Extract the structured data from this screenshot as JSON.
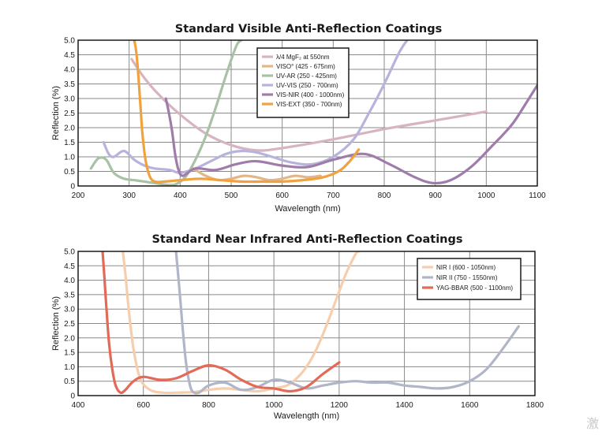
{
  "chart_data": [
    {
      "type": "line",
      "title": "Standard Visible Anti-Reflection Coatings",
      "xlabel": "Wavelength (nm)",
      "ylabel": "Reflection (%)",
      "xlim": [
        200,
        1100
      ],
      "ylim": [
        0,
        5.0
      ],
      "xticks": [
        "200",
        "300",
        "400",
        "500",
        "600",
        "700",
        "800",
        "900",
        "1000",
        "1100"
      ],
      "yticks": [
        "0",
        "0.5",
        "1.0",
        "1.5",
        "2.0",
        "2.5",
        "3.0",
        "3.5",
        "4.0",
        "4.5",
        "5.0"
      ],
      "grid": true,
      "legend_position": "top-center",
      "series": [
        {
          "name": "λ/4 MgF₂ at 550nm",
          "color": "#d7b4c0",
          "x": [
            305,
            330,
            360,
            400,
            450,
            500,
            550,
            600,
            700,
            800,
            900,
            1000
          ],
          "y": [
            4.35,
            3.7,
            3.1,
            2.45,
            1.8,
            1.4,
            1.22,
            1.3,
            1.6,
            1.95,
            2.25,
            2.55
          ]
        },
        {
          "name": "VISO° (425 - 675nm)",
          "color": "#e2b688",
          "x": [
            425,
            450,
            475,
            500,
            525,
            550,
            575,
            600,
            625,
            650,
            675
          ],
          "y": [
            0.6,
            0.35,
            0.2,
            0.25,
            0.35,
            0.3,
            0.2,
            0.25,
            0.35,
            0.3,
            0.35
          ]
        },
        {
          "name": "UV-AR (250 - 425nm)",
          "color": "#a7c2a5",
          "x": [
            225,
            240,
            255,
            270,
            290,
            310,
            330,
            350,
            370,
            390,
            410,
            430,
            450,
            470,
            490,
            510,
            520
          ],
          "y": [
            0.6,
            0.95,
            0.9,
            0.45,
            0.25,
            0.2,
            0.15,
            0.1,
            0.05,
            0.05,
            0.3,
            0.9,
            1.7,
            2.7,
            3.8,
            4.8,
            5.0
          ]
        },
        {
          "name": "UV-VIS (250 - 700nm)",
          "color": "#b6b4dc",
          "x": [
            250,
            260,
            270,
            290,
            310,
            330,
            350,
            380,
            400,
            430,
            460,
            490,
            520,
            550,
            580,
            620,
            660,
            700,
            740,
            770,
            800,
            830,
            845
          ],
          "y": [
            1.5,
            1.1,
            1.0,
            1.2,
            0.9,
            0.7,
            0.6,
            0.55,
            0.45,
            0.6,
            0.85,
            1.1,
            1.2,
            1.15,
            1.0,
            0.8,
            0.75,
            1.0,
            1.6,
            2.5,
            3.5,
            4.6,
            5.0
          ]
        },
        {
          "name": "VIS-NIR (400 - 1000nm)",
          "color": "#a07cab",
          "x": [
            372,
            378,
            384,
            390,
            396,
            405,
            430,
            470,
            510,
            550,
            600,
            650,
            700,
            760,
            810,
            860,
            895,
            930,
            970,
            1010,
            1050,
            1080,
            1100
          ],
          "y": [
            3.0,
            2.5,
            1.9,
            1.1,
            0.6,
            0.35,
            0.6,
            0.55,
            0.75,
            0.85,
            0.7,
            0.65,
            0.9,
            1.1,
            0.75,
            0.3,
            0.1,
            0.2,
            0.65,
            1.35,
            2.1,
            2.9,
            3.45
          ]
        },
        {
          "name": "VIS-EXT (350 - 700nm)",
          "color": "#f0a23e",
          "x": [
            310,
            314,
            318,
            322,
            326,
            332,
            340,
            350,
            370,
            400,
            440,
            480,
            520,
            560,
            600,
            640,
            680,
            710,
            730,
            750
          ],
          "y": [
            5.0,
            4.6,
            3.8,
            2.8,
            1.8,
            0.9,
            0.35,
            0.15,
            0.15,
            0.2,
            0.25,
            0.2,
            0.15,
            0.15,
            0.15,
            0.2,
            0.3,
            0.5,
            0.8,
            1.25
          ]
        }
      ]
    },
    {
      "type": "line",
      "title": "Standard Near Infrared Anti-Reflection Coatings",
      "xlabel": "Wavelength (nm)",
      "ylabel": "Reflection (%)",
      "xlim": [
        400,
        1800
      ],
      "ylim": [
        0,
        5.0
      ],
      "xticks": [
        "400",
        "600",
        "800",
        "1000",
        "1200",
        "1400",
        "1600",
        "1800"
      ],
      "yticks": [
        "0",
        "0.5",
        "1.0",
        "1.5",
        "2.0",
        "2.5",
        "3.0",
        "3.5",
        "4.0",
        "4.5",
        "5.0"
      ],
      "grid": true,
      "legend_position": "top-right",
      "series": [
        {
          "name": "NIR I (600 - 1050nm)",
          "color": "#f6ceac",
          "x": [
            537,
            545,
            555,
            570,
            590,
            620,
            660,
            700,
            750,
            800,
            850,
            900,
            950,
            1000,
            1040,
            1070,
            1100,
            1130,
            1160,
            1190,
            1220,
            1250,
            1260
          ],
          "y": [
            5.0,
            4.2,
            3.0,
            1.6,
            0.6,
            0.2,
            0.1,
            0.1,
            0.12,
            0.2,
            0.25,
            0.2,
            0.15,
            0.25,
            0.35,
            0.6,
            1.0,
            1.6,
            2.4,
            3.3,
            4.2,
            4.9,
            5.0
          ]
        },
        {
          "name": "NIR II (750 - 1550nm)",
          "color": "#b1b5c9",
          "x": [
            700,
            705,
            712,
            720,
            730,
            740,
            750,
            770,
            800,
            850,
            900,
            950,
            1000,
            1050,
            1100,
            1150,
            1200,
            1250,
            1300,
            1350,
            1400,
            1450,
            1500,
            1550,
            1600,
            1650,
            1700,
            1750
          ],
          "y": [
            5.0,
            4.4,
            3.5,
            2.4,
            1.2,
            0.5,
            0.15,
            0.1,
            0.35,
            0.45,
            0.2,
            0.3,
            0.55,
            0.45,
            0.25,
            0.35,
            0.45,
            0.5,
            0.45,
            0.45,
            0.35,
            0.3,
            0.25,
            0.3,
            0.5,
            0.9,
            1.6,
            2.4
          ]
        },
        {
          "name": "YAG-BBAR (500 - 1100nm)",
          "color": "#e36a57",
          "x": [
            475,
            480,
            487,
            495,
            505,
            515,
            530,
            545,
            570,
            600,
            650,
            700,
            750,
            800,
            850,
            900,
            950,
            1000,
            1050,
            1100,
            1150,
            1200
          ],
          "y": [
            5.0,
            4.2,
            3.0,
            1.8,
            0.9,
            0.35,
            0.1,
            0.2,
            0.5,
            0.65,
            0.55,
            0.6,
            0.85,
            1.05,
            0.9,
            0.55,
            0.3,
            0.25,
            0.15,
            0.3,
            0.75,
            1.15
          ]
        }
      ]
    }
  ],
  "watermark": "激"
}
